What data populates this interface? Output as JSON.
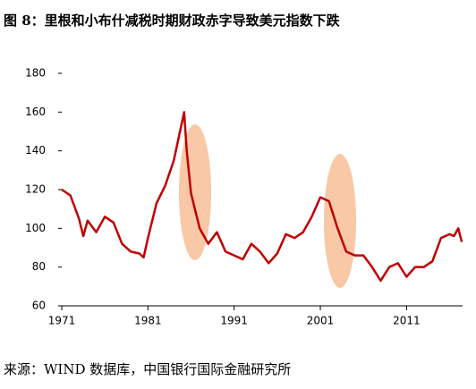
{
  "chart_data": {
    "type": "line",
    "title": "图 8：里根和小布什减税时期财政赤字导致美元指数下跌",
    "source": "来源：WIND 数据库，中国银行国际金融研究所",
    "x": [
      1971,
      1972,
      1973,
      1973.5,
      1974,
      1975,
      1976,
      1977,
      1978,
      1979,
      1980,
      1980.5,
      1981,
      1982,
      1983,
      1984,
      1985.2,
      1985.5,
      1986,
      1987,
      1988,
      1989,
      1990,
      1991,
      1992,
      1993,
      1994,
      1995,
      1996,
      1997,
      1998,
      1999,
      2000,
      2001,
      2002,
      2003,
      2004,
      2005,
      2006,
      2007,
      2008,
      2009,
      2010,
      2011,
      2012,
      2013,
      2014,
      2015,
      2016,
      2016.5,
      2017,
      2017.4
    ],
    "series": [
      {
        "name": "美元指数",
        "color": "#c00000",
        "values": [
          120,
          117,
          105,
          96,
          104,
          98,
          106,
          103,
          92,
          88,
          87,
          85,
          95,
          113,
          122,
          135,
          160,
          140,
          118,
          100,
          92,
          98,
          88,
          86,
          84,
          92,
          88,
          82,
          87,
          97,
          95,
          98,
          106,
          116,
          114,
          100,
          88,
          86,
          86,
          80,
          73,
          80,
          82,
          75,
          80,
          80,
          83,
          95,
          97,
          96,
          100,
          93
        ]
      }
    ],
    "xlim": [
      1971,
      2017.5
    ],
    "xticks": [
      1971,
      1981,
      1991,
      2001,
      2011
    ],
    "ylim": [
      60,
      180
    ],
    "yticks": [
      60,
      80,
      100,
      120,
      140,
      160,
      180
    ]
  }
}
